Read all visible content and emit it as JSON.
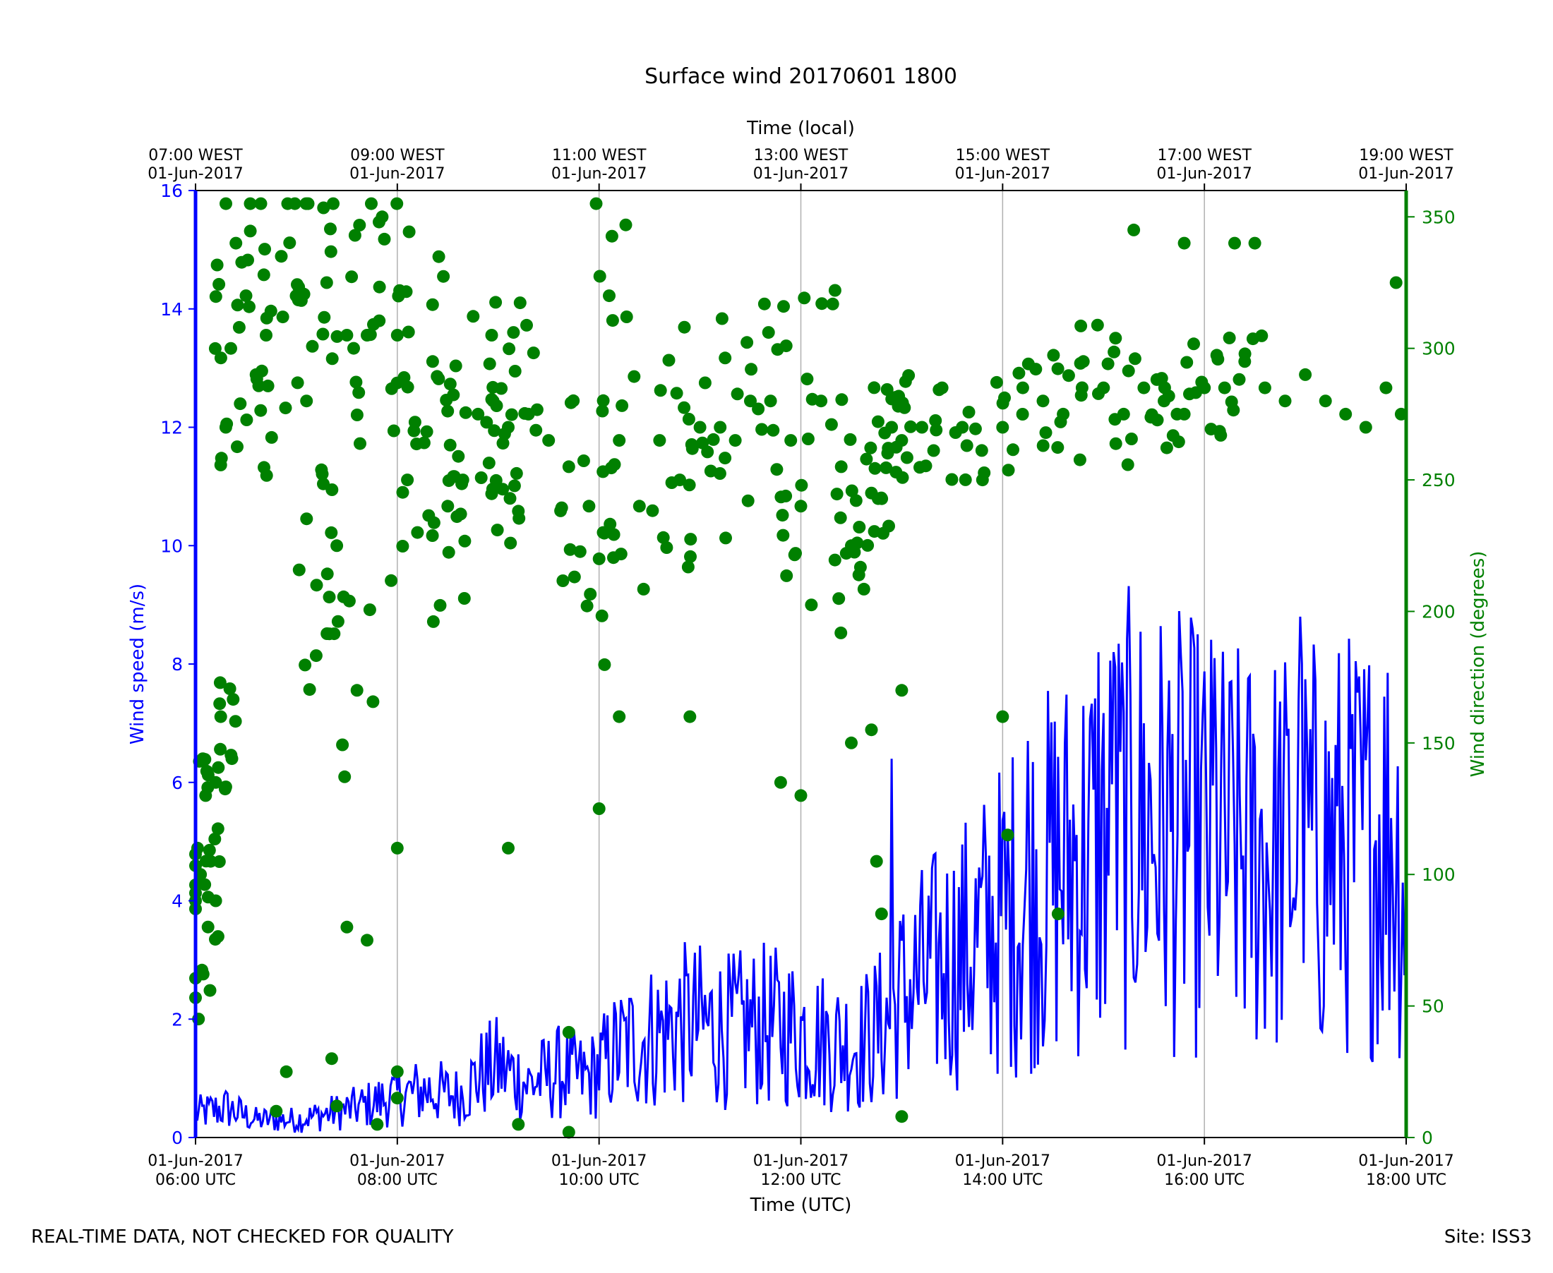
{
  "chart_data": {
    "type": "line+scatter",
    "title": "Surface wind 20170601 1800",
    "x_bottom": {
      "label": "Time (UTC)",
      "range_hours_utc": [
        6,
        18
      ],
      "ticks": [
        {
          "hour": 6,
          "line1": "01-Jun-2017",
          "line2": "06:00 UTC"
        },
        {
          "hour": 8,
          "line1": "01-Jun-2017",
          "line2": "08:00 UTC"
        },
        {
          "hour": 10,
          "line1": "01-Jun-2017",
          "line2": "10:00 UTC"
        },
        {
          "hour": 12,
          "line1": "01-Jun-2017",
          "line2": "12:00 UTC"
        },
        {
          "hour": 14,
          "line1": "01-Jun-2017",
          "line2": "14:00 UTC"
        },
        {
          "hour": 16,
          "line1": "01-Jun-2017",
          "line2": "16:00 UTC"
        },
        {
          "hour": 18,
          "line1": "01-Jun-2017",
          "line2": "18:00 UTC"
        }
      ]
    },
    "x_top": {
      "label": "Time (local)",
      "ticks": [
        {
          "hour": 6,
          "line1": "07:00 WEST",
          "line2": "01-Jun-2017"
        },
        {
          "hour": 8,
          "line1": "09:00 WEST",
          "line2": "01-Jun-2017"
        },
        {
          "hour": 10,
          "line1": "11:00 WEST",
          "line2": "01-Jun-2017"
        },
        {
          "hour": 12,
          "line1": "13:00 WEST",
          "line2": "01-Jun-2017"
        },
        {
          "hour": 14,
          "line1": "15:00 WEST",
          "line2": "01-Jun-2017"
        },
        {
          "hour": 16,
          "line1": "17:00 WEST",
          "line2": "01-Jun-2017"
        },
        {
          "hour": 18,
          "line1": "19:00 WEST",
          "line2": "01-Jun-2017"
        }
      ]
    },
    "y_left": {
      "label": "Wind speed (m/s)",
      "range": [
        0,
        16
      ],
      "ticks": [
        "0",
        "2",
        "4",
        "6",
        "8",
        "10",
        "12",
        "14",
        "16"
      ],
      "color": "#0000ff"
    },
    "y_right": {
      "label": "Wind direction (degrees)",
      "range": [
        0,
        360
      ],
      "ticks": [
        "0",
        "50",
        "100",
        "150",
        "200",
        "250",
        "300",
        "350"
      ],
      "color": "#008000"
    },
    "grid": "vertical at major x ticks",
    "series": [
      {
        "name": "Wind speed",
        "axis": "left",
        "style": "line",
        "color": "#0000ff",
        "points": [
          [
            6.0,
            0.4
          ],
          [
            6.3,
            0.5
          ],
          [
            6.6,
            0.3
          ],
          [
            7.0,
            0.3
          ],
          [
            7.3,
            0.4
          ],
          [
            7.6,
            0.5
          ],
          [
            8.0,
            0.7
          ],
          [
            8.3,
            0.8
          ],
          [
            8.6,
            0.7
          ],
          [
            8.85,
            1.1
          ],
          [
            9.0,
            1.2
          ],
          [
            9.3,
            0.9
          ],
          [
            9.6,
            1.1
          ],
          [
            9.9,
            1.0
          ],
          [
            10.2,
            1.5
          ],
          [
            10.5,
            1.7
          ],
          [
            10.8,
            1.9
          ],
          [
            11.0,
            1.9
          ],
          [
            11.3,
            1.8
          ],
          [
            11.6,
            1.9
          ],
          [
            12.0,
            1.8
          ],
          [
            12.3,
            1.6
          ],
          [
            12.6,
            1.6
          ],
          [
            12.9,
            2.0
          ],
          [
            13.0,
            2.4
          ],
          [
            13.3,
            2.8
          ],
          [
            13.6,
            3.1
          ],
          [
            14.0,
            3.7
          ],
          [
            14.3,
            4.2
          ],
          [
            14.6,
            4.6
          ],
          [
            15.0,
            5.0
          ],
          [
            15.3,
            5.4
          ],
          [
            15.6,
            5.2
          ],
          [
            16.0,
            5.0
          ],
          [
            16.3,
            4.8
          ],
          [
            16.6,
            4.8
          ],
          [
            17.0,
            4.9
          ],
          [
            17.3,
            4.9
          ],
          [
            17.6,
            5.0
          ],
          [
            17.85,
            5.2
          ],
          [
            18.0,
            4.2
          ]
        ],
        "peaks": [
          [
            12.9,
            6.4
          ],
          [
            14.25,
            6.7
          ],
          [
            14.95,
            8.2
          ],
          [
            15.1,
            8.2
          ],
          [
            16.1,
            8.1
          ],
          [
            16.95,
            8.8
          ]
        ]
      },
      {
        "name": "Wind direction",
        "axis": "right",
        "style": "scatter",
        "color": "#008000",
        "points": [
          [
            6.0,
            90
          ],
          [
            6.05,
            100
          ],
          [
            6.1,
            130
          ],
          [
            6.15,
            105
          ],
          [
            6.2,
            135
          ],
          [
            6.25,
            160
          ],
          [
            6.3,
            270
          ],
          [
            6.35,
            300
          ],
          [
            6.4,
            340
          ],
          [
            6.5,
            320
          ],
          [
            6.6,
            290
          ],
          [
            6.7,
            305
          ],
          [
            6.85,
            335
          ],
          [
            7.0,
            320
          ],
          [
            7.1,
            280
          ],
          [
            7.2,
            210
          ],
          [
            7.3,
            325
          ],
          [
            7.4,
            225
          ],
          [
            7.5,
            305
          ],
          [
            7.6,
            170
          ],
          [
            7.7,
            305
          ],
          [
            7.85,
            350
          ],
          [
            8.0,
            305
          ],
          [
            8.1,
            250
          ],
          [
            8.2,
            230
          ],
          [
            8.35,
            295
          ],
          [
            8.5,
            240
          ],
          [
            8.65,
            250
          ],
          [
            8.8,
            275
          ],
          [
            8.95,
            280
          ],
          [
            9.1,
            270
          ],
          [
            9.3,
            275
          ],
          [
            9.5,
            265
          ],
          [
            9.7,
            255
          ],
          [
            9.9,
            240
          ],
          [
            10.0,
            220
          ],
          [
            10.1,
            320
          ],
          [
            10.2,
            265
          ],
          [
            10.4,
            240
          ],
          [
            10.6,
            265
          ],
          [
            10.8,
            250
          ],
          [
            11.0,
            270
          ],
          [
            11.2,
            270
          ],
          [
            11.35,
            265
          ],
          [
            11.5,
            280
          ],
          [
            11.7,
            280
          ],
          [
            11.9,
            265
          ],
          [
            12.0,
            240
          ],
          [
            12.2,
            280
          ],
          [
            12.4,
            255
          ],
          [
            12.5,
            225
          ],
          [
            12.7,
            245
          ],
          [
            12.9,
            270
          ],
          [
            13.0,
            265
          ],
          [
            13.2,
            270
          ],
          [
            13.4,
            285
          ],
          [
            13.6,
            270
          ],
          [
            13.8,
            250
          ],
          [
            14.0,
            270
          ],
          [
            14.2,
            285
          ],
          [
            14.4,
            280
          ],
          [
            14.6,
            275
          ],
          [
            14.8,
            295
          ],
          [
            15.0,
            285
          ],
          [
            15.2,
            275
          ],
          [
            15.4,
            285
          ],
          [
            15.6,
            280
          ],
          [
            15.8,
            275
          ],
          [
            16.0,
            285
          ],
          [
            16.2,
            285
          ],
          [
            16.4,
            295
          ],
          [
            16.6,
            285
          ],
          [
            16.8,
            280
          ],
          [
            17.0,
            290
          ],
          [
            17.2,
            280
          ],
          [
            17.4,
            275
          ],
          [
            17.6,
            270
          ],
          [
            17.8,
            285
          ],
          [
            17.95,
            275
          ],
          [
            6.02,
            110
          ],
          [
            6.2,
            90
          ],
          [
            6.9,
            25
          ],
          [
            7.35,
            30
          ],
          [
            7.4,
            12
          ],
          [
            7.8,
            5
          ],
          [
            8.0,
            15
          ],
          [
            8.0,
            110
          ],
          [
            9.1,
            110
          ],
          [
            9.7,
            40
          ],
          [
            10.0,
            125
          ],
          [
            10.2,
            160
          ],
          [
            10.9,
            160
          ],
          [
            11.8,
            135
          ],
          [
            12.0,
            130
          ],
          [
            12.5,
            150
          ],
          [
            12.7,
            155
          ],
          [
            12.75,
            105
          ],
          [
            12.8,
            85
          ],
          [
            13.0,
            170
          ],
          [
            13.0,
            8
          ],
          [
            14.0,
            160
          ],
          [
            14.05,
            115
          ],
          [
            14.55,
            85
          ],
          [
            6.8,
            10
          ],
          [
            7.5,
            80
          ],
          [
            7.7,
            75
          ],
          [
            9.2,
            5
          ],
          [
            9.7,
            2
          ],
          [
            8.0,
            25
          ],
          [
            15.3,
            345
          ],
          [
            15.8,
            340
          ],
          [
            16.3,
            340
          ],
          [
            16.5,
            340
          ],
          [
            17.9,
            325
          ]
        ]
      }
    ]
  },
  "footer": {
    "left_note": "REAL-TIME DATA, NOT CHECKED FOR QUALITY",
    "site": "Site: ISS3"
  }
}
